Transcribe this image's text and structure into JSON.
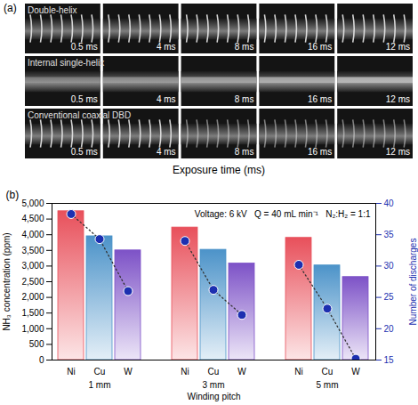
{
  "panel_a": {
    "label": "(a)",
    "rows": [
      "Double-helix",
      "Internal single-helix",
      "Conventional coaxial DBD"
    ],
    "times": [
      "0.5 ms",
      "4 ms",
      "8 ms",
      "16 ms",
      "12 ms"
    ],
    "x_label": "Exposure time (ms)"
  },
  "chart_data": {
    "type": "bar",
    "panel_label": "(b)",
    "annotation": "Voltage: 6 kV   Q = 40 mL min⁻¹   N₂:H₂ = 1:1",
    "x_label": "Winding pitch",
    "y_label": "NH₃ concentration (ppm)",
    "y2_label": "Number of discharges",
    "groups": [
      "1 mm",
      "3 mm",
      "5 mm"
    ],
    "categories": [
      "Ni",
      "Cu",
      "W"
    ],
    "colors": [
      "#e8505b",
      "#4c93c9",
      "#7d52c7"
    ],
    "ylim": [
      0,
      5000
    ],
    "yticks": [
      0,
      500,
      1000,
      1500,
      2000,
      2500,
      3000,
      3500,
      4000,
      4500,
      5000
    ],
    "y2lim": [
      15,
      40
    ],
    "y2ticks": [
      15,
      20,
      25,
      30,
      35,
      40
    ],
    "series": [
      {
        "type": "bar",
        "values": [
          [
            4750,
            3950,
            3500
          ],
          [
            4230,
            3520,
            3080
          ],
          [
            3900,
            3020,
            2650
          ]
        ]
      },
      {
        "type": "line",
        "axis": "y2",
        "color": "#1c2fb0",
        "marker": "circle",
        "line_style": "dotted",
        "values": [
          [
            38.3,
            34.3,
            26
          ],
          [
            34,
            26.2,
            22.2
          ],
          [
            30.2,
            23.2,
            15.2
          ]
        ]
      }
    ]
  }
}
